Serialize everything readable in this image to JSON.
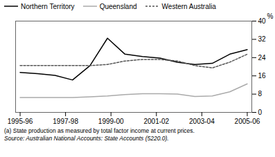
{
  "chart_data": {
    "type": "line",
    "y_label": "%",
    "annotations": [
      "(a) State production as measured by total factor income at current prices.",
      "Source: Australian National Accounts: State Accounts (5220.0)."
    ],
    "x": [
      0,
      0.7692307692307693,
      1.5384615384615385,
      2.3076923076923075,
      3.076923076923077,
      3.8461538461538463,
      4.615384615384615,
      5.384615384615385,
      6.153846153846154,
      6.923076923076923,
      7.6923076923076925,
      8.461538461538462,
      9.23076923076923,
      10
    ],
    "xlim": [
      -0.2,
      10.2
    ],
    "xticks": [
      {
        "value": 0,
        "label": "1995-96"
      },
      {
        "value": 2,
        "label": "1997-98"
      },
      {
        "value": 4,
        "label": "1999-00"
      },
      {
        "value": 6,
        "label": "2001-02"
      },
      {
        "value": 8,
        "label": "2003-04"
      },
      {
        "value": 10,
        "label": "2005-06"
      }
    ],
    "ylim": [
      0,
      40
    ],
    "yticks": [
      0,
      8,
      16,
      24,
      32,
      40
    ],
    "grid": false,
    "legend": "upper left",
    "series": [
      {
        "name": "Northern Territory",
        "color": "#000000",
        "line_style": "solid",
        "values": [
          17.5,
          17.0,
          16.2,
          14.2,
          20.5,
          32.5,
          25.5,
          24.5,
          23.8,
          22.0,
          21.0,
          21.5,
          25.5,
          27.5
        ]
      },
      {
        "name": "Queensland",
        "color": "#aaaaaa",
        "line_style": "solid",
        "values": [
          6.5,
          6.5,
          6.5,
          6.5,
          6.8,
          7.2,
          7.8,
          8.2,
          8.2,
          8.0,
          7.0,
          7.2,
          9.0,
          12.5
        ]
      },
      {
        "name": "Western Australia",
        "color": "#555555",
        "line_style": "dashed",
        "values": [
          20.5,
          20.5,
          20.5,
          20.5,
          20.5,
          21.0,
          22.5,
          23.2,
          23.2,
          22.5,
          20.5,
          19.5,
          22.0,
          25.5
        ]
      }
    ]
  }
}
